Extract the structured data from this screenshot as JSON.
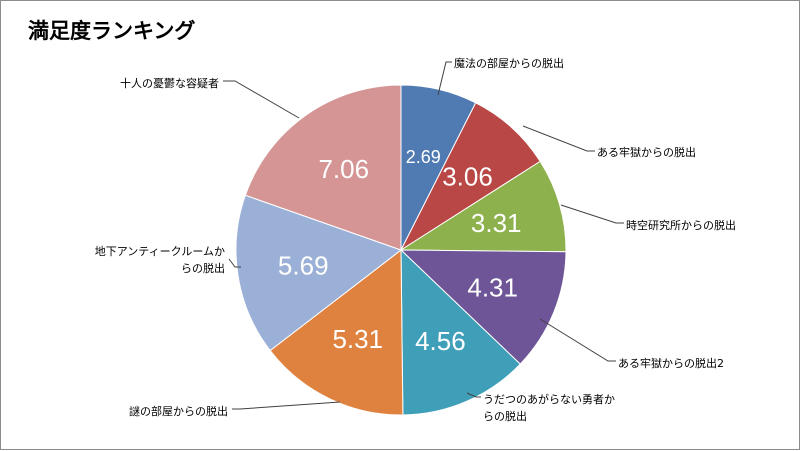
{
  "chart_data": {
    "type": "pie",
    "title": "満足度ランキング",
    "start_angle_deg": 0,
    "direction": "clockwise",
    "slices": [
      {
        "label": [
          "魔法の部屋からの脱出"
        ],
        "value": 2.69,
        "value_label": "2.69",
        "color": "#4f7ab2"
      },
      {
        "label": [
          "ある牢獄からの脱出"
        ],
        "value": 3.06,
        "value_label": "3.06",
        "color": "#b94745"
      },
      {
        "label": [
          "時空研究所からの脱出"
        ],
        "value": 3.31,
        "value_label": "3.31",
        "color": "#8db14c"
      },
      {
        "label": [
          "ある牢獄からの脱出2"
        ],
        "value": 4.31,
        "value_label": "4.31",
        "color": "#6e5597"
      },
      {
        "label": [
          "うだつのあがらない勇者か",
          "らの脱出"
        ],
        "value": 4.56,
        "value_label": "4.56",
        "color": "#3f9fb8"
      },
      {
        "label": [
          "謎の部屋からの脱出"
        ],
        "value": 5.31,
        "value_label": "5.31",
        "color": "#e0823f"
      },
      {
        "label": [
          "地下アンティークルームか",
          "らの脱出"
        ],
        "value": 5.69,
        "value_label": "5.69",
        "color": "#9bb0d7"
      },
      {
        "label": [
          "十人の憂鬱な容疑者"
        ],
        "value": 7.06,
        "value_label": "7.06",
        "color": "#d49594"
      }
    ]
  }
}
